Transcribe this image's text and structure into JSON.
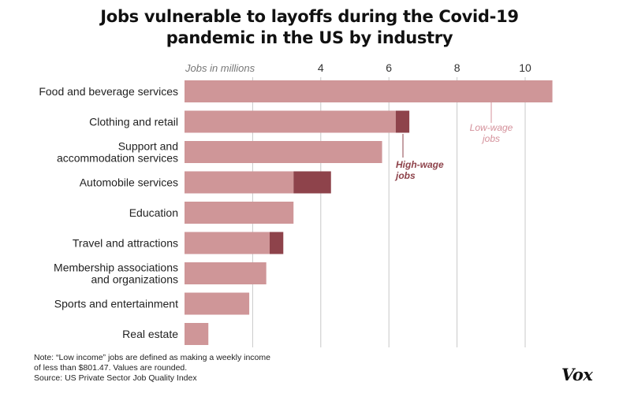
{
  "title": {
    "line1": "Jobs vulnerable to layoffs during the Covid-19",
    "line2": "pandemic in the US by industry"
  },
  "chart_data": {
    "type": "bar",
    "orientation": "horizontal",
    "stacked": true,
    "axis_label": "Jobs in millions",
    "x_ticks": [
      4,
      6,
      8,
      10
    ],
    "xlim": [
      0,
      11
    ],
    "grid": true,
    "categories": [
      "Food and beverage services",
      "Clothing and retail",
      "Support and\naccommodation services",
      "Automobile services",
      "Education",
      "Travel and attractions",
      "Membership associations\nand organizations",
      "Sports and entertainment",
      "Real estate"
    ],
    "series": [
      {
        "values": [
          10.8,
          6.2,
          5.8,
          3.2,
          3.2,
          2.5,
          2.4,
          1.9,
          0.7
        ],
        "color": "#cf9698"
      },
      {
        "values": [
          0.0,
          0.4,
          0.0,
          1.1,
          0.0,
          0.4,
          0.0,
          0.0,
          0.0
        ],
        "color": "#8e434b"
      }
    ],
    "annotations": [
      {
        "text": "Low-wage\njobs",
        "color": "#d4909a"
      },
      {
        "text": "High-wage\njobs",
        "color": "#8e434b"
      }
    ]
  },
  "footer": {
    "note_line1": "Note: “Low income” jobs are defined as making a weekly income",
    "note_line2": "of less than $801.47. Values are rounded.",
    "source": "Source: US Private Sector Job Quality Index",
    "logo": "Vox"
  }
}
